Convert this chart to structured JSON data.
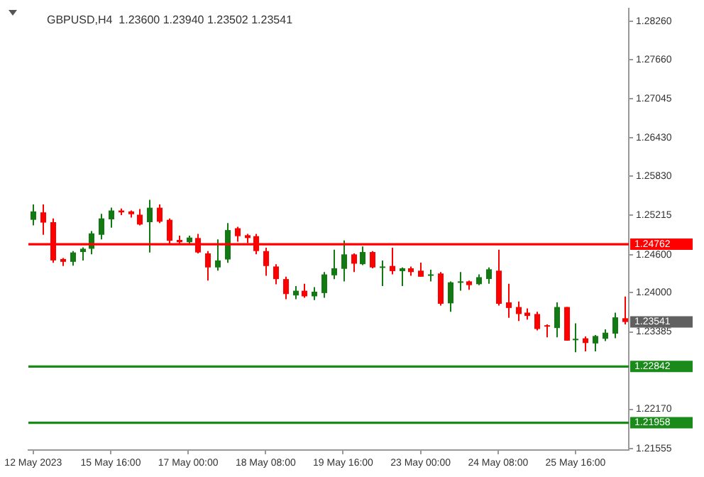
{
  "chart_data": {
    "type": "candlestick",
    "title": "GBPUSD,H4  1.23600 1.23940 1.23502 1.23541",
    "categories": [
      "12 May 2023",
      null,
      null,
      null,
      null,
      null,
      null,
      null,
      "15 May 16:00",
      null,
      null,
      null,
      null,
      null,
      null,
      null,
      "17 May 00:00",
      null,
      null,
      null,
      null,
      null,
      null,
      null,
      "18 May 08:00",
      null,
      null,
      null,
      null,
      null,
      null,
      null,
      "19 May 16:00",
      null,
      null,
      null,
      null,
      null,
      null,
      null,
      "23 May 00:00",
      null,
      null,
      null,
      null,
      null,
      null,
      null,
      "24 May 08:00",
      null,
      null,
      null,
      null,
      null,
      null,
      null,
      "25 May 16:00",
      null,
      null,
      null,
      null,
      null
    ],
    "ohlc": [
      [
        1.25146,
        1.25388,
        1.25058,
        1.25278
      ],
      [
        1.25263,
        1.25388,
        1.24911,
        1.25102
      ],
      [
        1.25109,
        1.25168,
        1.24471,
        1.24508
      ],
      [
        1.2453,
        1.24545,
        1.2442,
        1.24486
      ],
      [
        1.24486,
        1.24655,
        1.24427,
        1.24633
      ],
      [
        1.2464,
        1.24713,
        1.24508,
        1.24691
      ],
      [
        1.24691,
        1.2497,
        1.24603,
        1.24933
      ],
      [
        1.24911,
        1.25241,
        1.24838,
        1.25168
      ],
      [
        1.25153,
        1.25336,
        1.25021,
        1.25292
      ],
      [
        1.25292,
        1.25322,
        1.25219,
        1.25263
      ],
      [
        1.25278,
        1.25292,
        1.25182,
        1.25234
      ],
      [
        1.25226,
        1.25314,
        1.25058,
        1.25072
      ],
      [
        1.25109,
        1.25461,
        1.24633,
        1.25336
      ],
      [
        1.25336,
        1.25388,
        1.25094,
        1.25116
      ],
      [
        1.25146,
        1.25168,
        1.24764,
        1.24816
      ],
      [
        1.2483,
        1.24896,
        1.24764,
        1.24794
      ],
      [
        1.24794,
        1.24896,
        1.24764,
        1.24867
      ],
      [
        1.2486,
        1.24926,
        1.24618,
        1.24633
      ],
      [
        1.24618,
        1.24655,
        1.24193,
        1.24398
      ],
      [
        1.24398,
        1.24838,
        1.24347,
        1.24508
      ],
      [
        1.24523,
        1.25094,
        1.24471,
        1.24985
      ],
      [
        1.25014,
        1.25036,
        1.24801,
        1.24889
      ],
      [
        1.24904,
        1.24926,
        1.24779,
        1.2486
      ],
      [
        1.24889,
        1.24926,
        1.24603,
        1.24655
      ],
      [
        1.24655,
        1.24706,
        1.24266,
        1.2442
      ],
      [
        1.24413,
        1.24449,
        1.24134,
        1.24215
      ],
      [
        1.24215,
        1.24252,
        1.239,
        1.2398
      ],
      [
        1.23958,
        1.24105,
        1.239,
        1.24032
      ],
      [
        1.24032,
        1.24142,
        1.23922,
        1.23944
      ],
      [
        1.23944,
        1.2409,
        1.23885,
        1.24017
      ],
      [
        1.23995,
        1.24325,
        1.23922,
        1.24288
      ],
      [
        1.24274,
        1.24677,
        1.24215,
        1.24384
      ],
      [
        1.24376,
        1.24823,
        1.24178,
        1.24603
      ],
      [
        1.24603,
        1.24618,
        1.24325,
        1.24457
      ],
      [
        1.24449,
        1.24728,
        1.24435,
        1.2464
      ],
      [
        1.2464,
        1.24655,
        1.24383,
        1.24398
      ],
      [
        1.24398,
        1.24508,
        1.24105,
        1.24413
      ],
      [
        1.24421,
        1.24707,
        1.24289,
        1.2434
      ],
      [
        1.2434,
        1.24399,
        1.24106,
        1.24384
      ],
      [
        1.24384,
        1.24413,
        1.24267,
        1.24325
      ],
      [
        1.24347,
        1.24472,
        1.24252,
        1.24252
      ],
      [
        1.24267,
        1.24362,
        1.24179,
        1.24289
      ],
      [
        1.24303,
        1.24325,
        1.23798,
        1.23827
      ],
      [
        1.23834,
        1.24179,
        1.23702,
        1.24164
      ],
      [
        1.24157,
        1.24325,
        1.24032,
        1.24179
      ],
      [
        1.24179,
        1.24193,
        1.24047,
        1.2412
      ],
      [
        1.24135,
        1.24289,
        1.2412,
        1.24245
      ],
      [
        1.24216,
        1.24399,
        1.24142,
        1.24369
      ],
      [
        1.24347,
        1.24677,
        1.23798,
        1.23827
      ],
      [
        1.23849,
        1.24142,
        1.23607,
        1.23761
      ],
      [
        1.23776,
        1.23864,
        1.23556,
        1.23666
      ],
      [
        1.23688,
        1.23754,
        1.23578,
        1.23636
      ],
      [
        1.23666,
        1.23702,
        1.23409,
        1.23431
      ],
      [
        1.2349,
        1.23504,
        1.23299,
        1.23468
      ],
      [
        1.23446,
        1.23849,
        1.23299,
        1.23776
      ],
      [
        1.23776,
        1.23776,
        1.23248,
        1.23248
      ],
      [
        1.23255,
        1.23519,
        1.23065,
        1.23277
      ],
      [
        1.23285,
        1.23314,
        1.23079,
        1.23211
      ],
      [
        1.23204,
        1.23336,
        1.23079,
        1.23321
      ],
      [
        1.23277,
        1.23424,
        1.23241,
        1.23373
      ],
      [
        1.23358,
        1.23688,
        1.23285,
        1.23614
      ],
      [
        1.236,
        1.2394,
        1.23502,
        1.23541
      ]
    ],
    "colors": [
      "#137a13",
      "#ff0000",
      "#ff0000",
      "#ff0000",
      "#137a13",
      "#137a13",
      "#137a13",
      "#137a13",
      "#137a13",
      "#ff0000",
      "#ff0000",
      "#ff0000",
      "#137a13",
      "#ff0000",
      "#ff0000",
      "#ff0000",
      "#137a13",
      "#ff0000",
      "#ff0000",
      "#137a13",
      "#137a13",
      "#ff0000",
      "#ff0000",
      "#ff0000",
      "#ff0000",
      "#ff0000",
      "#ff0000",
      "#137a13",
      "#ff0000",
      "#137a13",
      "#137a13",
      "#137a13",
      "#137a13",
      "#ff0000",
      "#137a13",
      "#ff0000",
      "#137a13",
      "#ff0000",
      "#137a13",
      "#ff0000",
      "#ff0000",
      "#137a13",
      "#ff0000",
      "#137a13",
      "#137a13",
      "#ff0000",
      "#137a13",
      "#137a13",
      "#ff0000",
      "#ff0000",
      "#ff0000",
      "#ff0000",
      "#ff0000",
      "#ff0000",
      "#137a13",
      "#ff0000",
      "#137a13",
      "#ff0000",
      "#137a13",
      "#137a13",
      "#137a13",
      "#ff0000"
    ],
    "ylim": [
      1.2153,
      1.2846
    ],
    "yticks": [
      {
        "value": 1.2826,
        "label": "1.28260"
      },
      {
        "value": 1.2766,
        "label": "1.27660"
      },
      1.27045,
      {
        "value": 1.2643,
        "label": "1.26430"
      },
      {
        "value": 1.2583,
        "label": "1.25830"
      },
      1.25215,
      {
        "value": 1.246,
        "label": "1.24600"
      },
      {
        "value": 1.24,
        "label": "1.24000"
      },
      1.23385,
      {
        "value": 1.2217,
        "label": "1.22170"
      },
      1.21555
    ],
    "ref_lines": [
      {
        "axis": "y",
        "value": 1.24762,
        "label": "1.24762",
        "color": "#ff0000"
      },
      {
        "axis": "y",
        "value": 1.22842,
        "label": "1.22842",
        "color": "#1a8a1a"
      },
      {
        "axis": "y",
        "value": 1.21958,
        "label": "1.21958",
        "color": "#1a8a1a"
      }
    ],
    "annotations": [
      "1.23541"
    ],
    "grid": false,
    "legend": false
  }
}
